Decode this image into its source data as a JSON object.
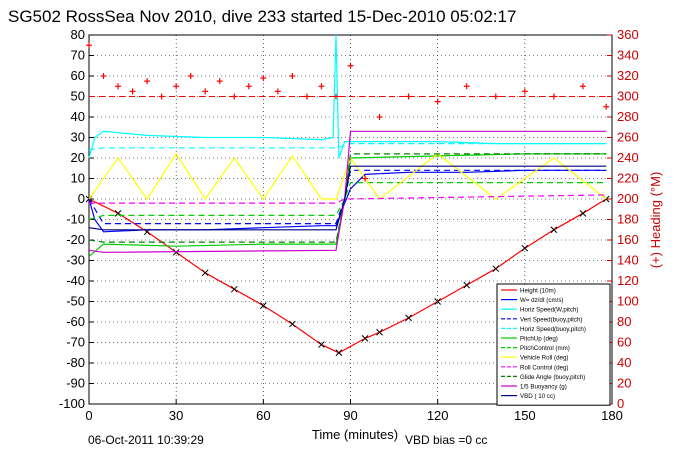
{
  "chart_data": {
    "type": "line",
    "title": "SG502 RossSea Nov 2010, dive 233 started 15-Dec-2010 05:02:17",
    "xlabel": "Time (minutes)",
    "ylabel_right": "(+) Heading (°M)",
    "xlim": [
      0,
      180
    ],
    "ylim": [
      -100,
      80
    ],
    "ylim_right": [
      0,
      360
    ],
    "x_ticks": [
      "0",
      "30",
      "60",
      "90",
      "120",
      "150",
      "180"
    ],
    "y_ticks": [
      "80",
      "70",
      "60",
      "50",
      "40",
      "30",
      "20",
      "10",
      "0",
      "-10",
      "-20",
      "-30",
      "-40",
      "-50",
      "-60",
      "-70",
      "-80",
      "-90",
      "-100"
    ],
    "y_ticks_right": [
      "360",
      "340",
      "320",
      "300",
      "280",
      "260",
      "240",
      "220",
      "200",
      "180",
      "160",
      "140",
      "120",
      "100",
      "80",
      "60",
      "40",
      "20",
      "0"
    ],
    "grid": true,
    "legend_position": "bottom-right",
    "footer_left": "06-Oct-2011 10:39:29",
    "footer_center": "VBD bias =0 cc",
    "series": [
      {
        "name": "Height (10m)",
        "color": "#ff0000",
        "style": "solid-x",
        "x": [
          0,
          10,
          20,
          30,
          40,
          50,
          60,
          70,
          80,
          86,
          95,
          100,
          110,
          120,
          130,
          140,
          150,
          160,
          170,
          178
        ],
        "y": [
          0,
          -7,
          -16,
          -26,
          -36,
          -44,
          -52,
          -61,
          -71,
          -75,
          -68,
          -65,
          -58,
          -50,
          -42,
          -34,
          -24,
          -15,
          -7,
          0
        ]
      },
      {
        "name": "W= dz/dt (cm/s)",
        "color": "#0000ff",
        "style": "solid",
        "x": [
          0,
          2,
          5,
          20,
          40,
          60,
          80,
          85,
          88,
          90,
          95,
          110,
          130,
          150,
          170,
          178
        ],
        "y": [
          0,
          -10,
          -16,
          -15,
          -15,
          -14,
          -13,
          -13,
          -2,
          5,
          12,
          13,
          13,
          14,
          14,
          14
        ]
      },
      {
        "name": "Horiz Speed(W,pitch)",
        "color": "#00ffff",
        "style": "solid",
        "x": [
          0,
          2,
          5,
          20,
          40,
          60,
          80,
          84,
          85,
          86,
          88,
          90,
          100,
          120,
          140,
          160,
          178
        ],
        "y": [
          20,
          30,
          33,
          31,
          30,
          30,
          29,
          30,
          80,
          20,
          28,
          28,
          28,
          28,
          27,
          27,
          27
        ]
      },
      {
        "name": "Vert Speed(buoy,pitch)",
        "color": "#0000ff",
        "style": "dashed",
        "x": [
          0,
          5,
          80,
          85,
          88,
          90,
          178
        ],
        "y": [
          0,
          -12,
          -12,
          -12,
          0,
          14,
          14
        ]
      },
      {
        "name": "Horiz Speed(buoy,pitch)",
        "color": "#00ffff",
        "style": "dashed",
        "x": [
          0,
          5,
          85,
          88,
          90,
          178
        ],
        "y": [
          24,
          25,
          25,
          26,
          27,
          27
        ]
      },
      {
        "name": "PitchUp (deg)",
        "color": "#00cc00",
        "style": "solid",
        "x": [
          0,
          5,
          30,
          60,
          85,
          88,
          90,
          120,
          150,
          178
        ],
        "y": [
          -28,
          -22,
          -23,
          -22,
          -22,
          0,
          20,
          21,
          22,
          22
        ]
      },
      {
        "name": "PitchControl (mm)",
        "color": "#00cc00",
        "style": "dashed",
        "x": [
          0,
          5,
          85,
          88,
          90,
          178
        ],
        "y": [
          -10,
          -8,
          -8,
          0,
          8,
          8
        ]
      },
      {
        "name": "Vehicle Roll (deg)",
        "color": "#ffff00",
        "style": "solid",
        "x": [
          0,
          10,
          20,
          30,
          40,
          50,
          60,
          70,
          80,
          85,
          90,
          100,
          120,
          140,
          160,
          178
        ],
        "y": [
          0,
          20,
          0,
          22,
          0,
          20,
          0,
          21,
          0,
          0,
          20,
          0,
          22,
          0,
          20,
          0
        ]
      },
      {
        "name": "Roll Control (deg)",
        "color": "#ff00ff",
        "style": "dashed",
        "x": [
          0,
          85,
          88,
          178
        ],
        "y": [
          -2,
          -2,
          0,
          2
        ]
      },
      {
        "name": "Glide Angle (buoy,pitch)",
        "color": "#008000",
        "style": "dashed",
        "x": [
          0,
          5,
          85,
          88,
          90,
          178
        ],
        "y": [
          -20,
          -21,
          -21,
          0,
          22,
          22
        ]
      },
      {
        "name": "1/5 Buoyancy (g)",
        "color": "#cc00cc",
        "style": "solid",
        "x": [
          0,
          5,
          85,
          88,
          90,
          178
        ],
        "y": [
          -25,
          -26,
          -25,
          0,
          33,
          33
        ]
      },
      {
        "name": "VBD ( 10 cc)",
        "color": "#000080",
        "style": "solid",
        "x": [
          0,
          5,
          85,
          88,
          90,
          178
        ],
        "y": [
          -14,
          -15,
          -15,
          0,
          16,
          16
        ]
      }
    ],
    "heading_series": {
      "name": "Heading (°M)",
      "color": "#ff0000",
      "marker": "+",
      "axis": "right",
      "x": [
        0,
        5,
        10,
        15,
        20,
        25,
        30,
        35,
        40,
        45,
        50,
        55,
        60,
        65,
        70,
        75,
        80,
        85,
        90,
        95,
        100,
        110,
        120,
        130,
        140,
        150,
        160,
        170,
        178
      ],
      "y": [
        350,
        320,
        310,
        305,
        315,
        300,
        310,
        320,
        305,
        315,
        300,
        310,
        318,
        305,
        320,
        300,
        310,
        300,
        330,
        220,
        280,
        300,
        295,
        310,
        300,
        305,
        300,
        310,
        290
      ]
    },
    "heading_mean_right": 300
  }
}
